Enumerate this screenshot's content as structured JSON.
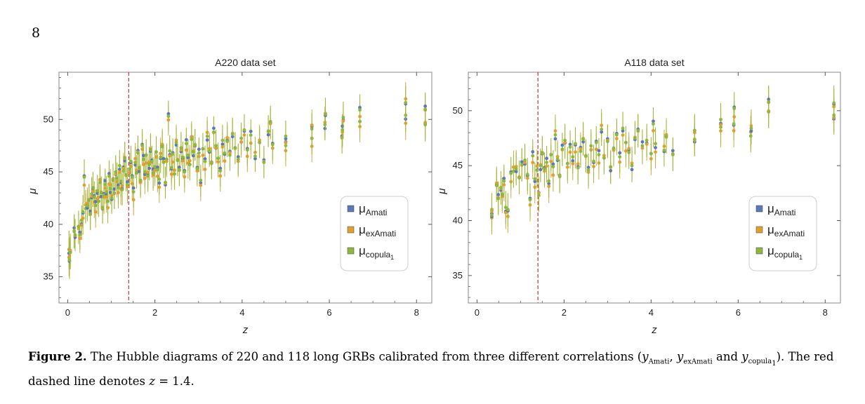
{
  "page_number": "8",
  "caption": {
    "label": "Figure 2.",
    "text_part1": " The Hubble diagrams of 220 and 118 long GRBs calibrated from three different correlations (",
    "y_symbol": "y",
    "sub_amati": "Amati",
    "sub_examati": "exAmati",
    "sub_copula": "copula",
    "sub_copula_index": "1",
    "sep1": ", ",
    "sep_and": " and ",
    "text_part2": "). The red dashed line denotes ",
    "z_symbol": "z",
    "text_part3": " = 1.4."
  },
  "colors": {
    "amati": "#5B78B8",
    "examati": "#E0A030",
    "copula": "#8DB840",
    "errorbar": "#9DB83A",
    "errorbar_orange": "#D9A33A",
    "redline": "#D0403A",
    "frame": "#888888"
  },
  "legend": {
    "mu": "μ",
    "amati": "Amati",
    "examati": "exAmati",
    "copula": "copula",
    "copula_index": "1"
  },
  "chart_data": [
    {
      "type": "scatter",
      "title": "A220 data set",
      "xlabel": "z",
      "ylabel": "μ",
      "xlim": [
        -0.2,
        8.35
      ],
      "ylim": [
        32.5,
        54.5
      ],
      "xticks": [
        0,
        2,
        4,
        6,
        8
      ],
      "yticks": [
        35,
        40,
        45,
        50
      ],
      "vline_z": 1.4,
      "legend_position": "lower-right",
      "n_points": 220,
      "series_names": [
        "μAmati",
        "μexAmati",
        "μcopula1"
      ],
      "points": [
        {
          "z": 0.03,
          "mu": 37.6,
          "err": 1.8
        },
        {
          "z": 0.04,
          "mu": 36.6,
          "err": 1.8
        },
        {
          "z": 0.06,
          "mu": 37.3,
          "err": 1.6
        },
        {
          "z": 0.15,
          "mu": 39.3,
          "err": 1.6
        },
        {
          "z": 0.17,
          "mu": 39.0,
          "err": 1.5
        },
        {
          "z": 0.25,
          "mu": 39.8,
          "err": 1.5
        },
        {
          "z": 0.28,
          "mu": 39.0,
          "err": 1.4
        },
        {
          "z": 0.32,
          "mu": 40.4,
          "err": 1.4
        },
        {
          "z": 0.35,
          "mu": 41.2,
          "err": 1.6
        },
        {
          "z": 0.38,
          "mu": 44.5,
          "err": 1.7
        },
        {
          "z": 0.41,
          "mu": 41.5,
          "err": 1.4
        },
        {
          "z": 0.45,
          "mu": 41.8,
          "err": 1.5
        },
        {
          "z": 0.49,
          "mu": 42.3,
          "err": 1.5
        },
        {
          "z": 0.52,
          "mu": 41.0,
          "err": 1.5
        },
        {
          "z": 0.55,
          "mu": 42.9,
          "err": 1.6
        },
        {
          "z": 0.58,
          "mu": 43.5,
          "err": 1.5
        },
        {
          "z": 0.61,
          "mu": 42.6,
          "err": 1.5
        },
        {
          "z": 0.64,
          "mu": 41.8,
          "err": 1.5
        },
        {
          "z": 0.68,
          "mu": 43.2,
          "err": 1.5
        },
        {
          "z": 0.71,
          "mu": 42.2,
          "err": 1.5
        },
        {
          "z": 0.74,
          "mu": 44.0,
          "err": 1.5
        },
        {
          "z": 0.77,
          "mu": 43.0,
          "err": 1.5
        },
        {
          "z": 0.8,
          "mu": 41.6,
          "err": 1.5
        },
        {
          "z": 0.83,
          "mu": 42.8,
          "err": 1.6
        },
        {
          "z": 0.86,
          "mu": 43.8,
          "err": 1.5
        },
        {
          "z": 0.89,
          "mu": 43.1,
          "err": 1.5
        },
        {
          "z": 0.92,
          "mu": 42.2,
          "err": 1.5
        },
        {
          "z": 0.95,
          "mu": 44.6,
          "err": 1.5
        },
        {
          "z": 0.98,
          "mu": 43.4,
          "err": 1.5
        },
        {
          "z": 1.01,
          "mu": 42.5,
          "err": 1.5
        },
        {
          "z": 1.04,
          "mu": 44.2,
          "err": 1.5
        },
        {
          "z": 1.07,
          "mu": 43.0,
          "err": 1.5
        },
        {
          "z": 1.1,
          "mu": 45.0,
          "err": 1.6
        },
        {
          "z": 1.13,
          "mu": 44.4,
          "err": 1.5
        },
        {
          "z": 1.16,
          "mu": 43.5,
          "err": 1.5
        },
        {
          "z": 1.19,
          "mu": 45.6,
          "err": 1.5
        },
        {
          "z": 1.22,
          "mu": 44.1,
          "err": 1.5
        },
        {
          "z": 1.25,
          "mu": 43.3,
          "err": 1.5
        },
        {
          "z": 1.28,
          "mu": 45.1,
          "err": 1.5
        },
        {
          "z": 1.31,
          "mu": 46.3,
          "err": 1.5
        },
        {
          "z": 1.34,
          "mu": 44.7,
          "err": 1.5
        },
        {
          "z": 1.37,
          "mu": 43.8,
          "err": 1.6
        },
        {
          "z": 1.42,
          "mu": 45.3,
          "err": 1.5
        },
        {
          "z": 1.45,
          "mu": 46.0,
          "err": 1.5
        },
        {
          "z": 1.48,
          "mu": 44.5,
          "err": 1.5
        },
        {
          "z": 1.51,
          "mu": 43.1,
          "err": 1.5
        },
        {
          "z": 1.55,
          "mu": 45.9,
          "err": 1.5
        },
        {
          "z": 1.58,
          "mu": 44.9,
          "err": 1.5
        },
        {
          "z": 1.61,
          "mu": 46.8,
          "err": 1.6
        },
        {
          "z": 1.64,
          "mu": 45.4,
          "err": 1.5
        },
        {
          "z": 1.67,
          "mu": 44.2,
          "err": 1.5
        },
        {
          "z": 1.71,
          "mu": 47.5,
          "err": 1.6
        },
        {
          "z": 1.74,
          "mu": 46.2,
          "err": 1.5
        },
        {
          "z": 1.77,
          "mu": 45.0,
          "err": 1.5
        },
        {
          "z": 1.8,
          "mu": 46.6,
          "err": 1.5
        },
        {
          "z": 1.84,
          "mu": 44.6,
          "err": 1.5
        },
        {
          "z": 1.87,
          "mu": 45.7,
          "err": 1.5
        },
        {
          "z": 1.9,
          "mu": 47.1,
          "err": 1.5
        },
        {
          "z": 1.93,
          "mu": 46.0,
          "err": 1.5
        },
        {
          "z": 1.96,
          "mu": 44.9,
          "err": 1.5
        },
        {
          "z": 2.0,
          "mu": 45.5,
          "err": 1.5
        },
        {
          "z": 2.03,
          "mu": 46.9,
          "err": 1.5
        },
        {
          "z": 2.06,
          "mu": 45.2,
          "err": 1.5
        },
        {
          "z": 2.1,
          "mu": 44.3,
          "err": 1.5
        },
        {
          "z": 2.13,
          "mu": 46.4,
          "err": 1.5
        },
        {
          "z": 2.17,
          "mu": 47.4,
          "err": 1.5
        },
        {
          "z": 2.2,
          "mu": 45.9,
          "err": 1.5
        },
        {
          "z": 2.24,
          "mu": 44.0,
          "err": 1.5
        },
        {
          "z": 2.27,
          "mu": 46.2,
          "err": 1.5
        },
        {
          "z": 2.31,
          "mu": 50.3,
          "err": 1.5
        },
        {
          "z": 2.34,
          "mu": 47.0,
          "err": 1.5
        },
        {
          "z": 2.38,
          "mu": 45.4,
          "err": 1.5
        },
        {
          "z": 2.41,
          "mu": 46.7,
          "err": 1.5
        },
        {
          "z": 2.45,
          "mu": 44.8,
          "err": 1.5
        },
        {
          "z": 2.49,
          "mu": 47.8,
          "err": 1.5
        },
        {
          "z": 2.52,
          "mu": 46.1,
          "err": 1.5
        },
        {
          "z": 2.56,
          "mu": 45.2,
          "err": 1.5
        },
        {
          "z": 2.6,
          "mu": 47.3,
          "err": 1.5
        },
        {
          "z": 2.64,
          "mu": 46.4,
          "err": 1.5
        },
        {
          "z": 2.68,
          "mu": 45.0,
          "err": 1.5
        },
        {
          "z": 2.72,
          "mu": 47.7,
          "err": 1.5
        },
        {
          "z": 2.76,
          "mu": 46.6,
          "err": 1.5
        },
        {
          "z": 2.8,
          "mu": 45.7,
          "err": 1.5
        },
        {
          "z": 2.84,
          "mu": 48.1,
          "err": 1.5
        },
        {
          "z": 2.88,
          "mu": 46.9,
          "err": 1.5
        },
        {
          "z": 2.92,
          "mu": 47.6,
          "err": 1.5
        },
        {
          "z": 2.97,
          "mu": 45.3,
          "err": 1.5
        },
        {
          "z": 3.01,
          "mu": 46.8,
          "err": 1.5
        },
        {
          "z": 3.05,
          "mu": 44.2,
          "err": 1.5
        },
        {
          "z": 3.1,
          "mu": 47.2,
          "err": 1.5
        },
        {
          "z": 3.15,
          "mu": 46.0,
          "err": 1.5
        },
        {
          "z": 3.2,
          "mu": 48.4,
          "err": 1.5
        },
        {
          "z": 3.25,
          "mu": 47.0,
          "err": 1.5
        },
        {
          "z": 3.3,
          "mu": 45.8,
          "err": 1.5
        },
        {
          "z": 3.35,
          "mu": 48.8,
          "err": 1.5
        },
        {
          "z": 3.4,
          "mu": 47.5,
          "err": 1.5
        },
        {
          "z": 3.45,
          "mu": 46.3,
          "err": 1.5
        },
        {
          "z": 3.5,
          "mu": 45.1,
          "err": 1.5
        },
        {
          "z": 3.55,
          "mu": 48.0,
          "err": 1.5
        },
        {
          "z": 3.6,
          "mu": 46.8,
          "err": 1.5
        },
        {
          "z": 3.66,
          "mu": 47.9,
          "err": 1.5
        },
        {
          "z": 3.72,
          "mu": 46.6,
          "err": 1.5
        },
        {
          "z": 3.78,
          "mu": 48.6,
          "err": 1.5
        },
        {
          "z": 3.84,
          "mu": 47.3,
          "err": 1.5
        },
        {
          "z": 3.91,
          "mu": 46.2,
          "err": 1.5
        },
        {
          "z": 3.98,
          "mu": 48.2,
          "err": 1.5
        },
        {
          "z": 4.05,
          "mu": 49.0,
          "err": 1.5
        },
        {
          "z": 4.12,
          "mu": 47.1,
          "err": 1.5
        },
        {
          "z": 4.2,
          "mu": 48.5,
          "err": 1.5
        },
        {
          "z": 4.3,
          "mu": 46.5,
          "err": 1.5
        },
        {
          "z": 4.4,
          "mu": 47.8,
          "err": 1.5
        },
        {
          "z": 4.5,
          "mu": 45.9,
          "err": 1.5
        },
        {
          "z": 4.6,
          "mu": 48.9,
          "err": 1.5
        },
        {
          "z": 4.65,
          "mu": 49.8,
          "err": 1.5
        },
        {
          "z": 4.7,
          "mu": 47.6,
          "err": 1.5
        },
        {
          "z": 5.0,
          "mu": 47.5,
          "err": 1.5
        },
        {
          "z": 5.0,
          "mu": 48.4,
          "err": 1.5
        },
        {
          "z": 5.6,
          "mu": 48.2,
          "err": 1.5
        },
        {
          "z": 5.6,
          "mu": 49.1,
          "err": 1.5
        },
        {
          "z": 5.9,
          "mu": 49.5,
          "err": 1.5
        },
        {
          "z": 5.91,
          "mu": 50.5,
          "err": 1.5
        },
        {
          "z": 6.29,
          "mu": 48.3,
          "err": 1.5
        },
        {
          "z": 6.3,
          "mu": 49.0,
          "err": 1.5
        },
        {
          "z": 6.32,
          "mu": 50.2,
          "err": 1.5
        },
        {
          "z": 6.7,
          "mu": 49.8,
          "err": 1.5
        },
        {
          "z": 6.7,
          "mu": 50.9,
          "err": 1.5
        },
        {
          "z": 7.75,
          "mu": 50.4,
          "err": 1.6
        },
        {
          "z": 7.75,
          "mu": 51.6,
          "err": 1.6
        },
        {
          "z": 8.2,
          "mu": 49.5,
          "err": 1.6
        },
        {
          "z": 8.2,
          "mu": 50.9,
          "err": 1.6
        }
      ]
    },
    {
      "type": "scatter",
      "title": "A118 data set",
      "xlabel": "z",
      "ylabel": "μ",
      "xlim": [
        -0.2,
        8.35
      ],
      "ylim": [
        32.5,
        53.5
      ],
      "xticks": [
        0,
        2,
        4,
        6,
        8
      ],
      "yticks": [
        35,
        40,
        45,
        50
      ],
      "vline_z": 1.4,
      "legend_position": "lower-right",
      "n_points": 118,
      "series_names": [
        "μAmati",
        "μexAmati",
        "μcopula1"
      ],
      "points": [
        {
          "z": 0.34,
          "mu": 41.0,
          "err": 1.5
        },
        {
          "z": 0.34,
          "mu": 40.5,
          "err": 1.5
        },
        {
          "z": 0.45,
          "mu": 43.2,
          "err": 1.5
        },
        {
          "z": 0.49,
          "mu": 42.0,
          "err": 1.5
        },
        {
          "z": 0.55,
          "mu": 43.0,
          "err": 1.5
        },
        {
          "z": 0.58,
          "mu": 42.4,
          "err": 1.5
        },
        {
          "z": 0.62,
          "mu": 43.6,
          "err": 1.5
        },
        {
          "z": 0.66,
          "mu": 41.2,
          "err": 1.5
        },
        {
          "z": 0.71,
          "mu": 41.0,
          "err": 1.5
        },
        {
          "z": 0.78,
          "mu": 44.3,
          "err": 1.5
        },
        {
          "z": 0.84,
          "mu": 44.5,
          "err": 1.5
        },
        {
          "z": 0.9,
          "mu": 44.7,
          "err": 1.5
        },
        {
          "z": 0.97,
          "mu": 43.9,
          "err": 1.5
        },
        {
          "z": 1.03,
          "mu": 45.1,
          "err": 1.5
        },
        {
          "z": 1.1,
          "mu": 45.5,
          "err": 1.5
        },
        {
          "z": 1.16,
          "mu": 44.2,
          "err": 1.5
        },
        {
          "z": 1.22,
          "mu": 41.9,
          "err": 1.5
        },
        {
          "z": 1.28,
          "mu": 45.9,
          "err": 1.5
        },
        {
          "z": 1.33,
          "mu": 43.8,
          "err": 1.5
        },
        {
          "z": 1.38,
          "mu": 44.6,
          "err": 1.5
        },
        {
          "z": 1.42,
          "mu": 42.3,
          "err": 1.5
        },
        {
          "z": 1.46,
          "mu": 45.0,
          "err": 1.5
        },
        {
          "z": 1.5,
          "mu": 46.2,
          "err": 1.5
        },
        {
          "z": 1.55,
          "mu": 44.7,
          "err": 1.5
        },
        {
          "z": 1.6,
          "mu": 45.3,
          "err": 1.5
        },
        {
          "z": 1.65,
          "mu": 43.6,
          "err": 1.5
        },
        {
          "z": 1.7,
          "mu": 46.0,
          "err": 1.5
        },
        {
          "z": 1.75,
          "mu": 44.9,
          "err": 1.5
        },
        {
          "z": 1.8,
          "mu": 47.8,
          "err": 1.5
        },
        {
          "z": 1.85,
          "mu": 45.6,
          "err": 1.5
        },
        {
          "z": 1.9,
          "mu": 44.0,
          "err": 1.5
        },
        {
          "z": 1.96,
          "mu": 46.5,
          "err": 1.5
        },
        {
          "z": 2.02,
          "mu": 47.3,
          "err": 1.5
        },
        {
          "z": 2.08,
          "mu": 45.2,
          "err": 1.5
        },
        {
          "z": 2.14,
          "mu": 46.7,
          "err": 1.5
        },
        {
          "z": 2.2,
          "mu": 45.8,
          "err": 1.5
        },
        {
          "z": 2.26,
          "mu": 47.0,
          "err": 1.5
        },
        {
          "z": 2.32,
          "mu": 44.8,
          "err": 1.5
        },
        {
          "z": 2.38,
          "mu": 46.3,
          "err": 1.5
        },
        {
          "z": 2.44,
          "mu": 47.4,
          "err": 1.5
        },
        {
          "z": 2.5,
          "mu": 45.9,
          "err": 1.5
        },
        {
          "z": 2.56,
          "mu": 44.6,
          "err": 1.5
        },
        {
          "z": 2.62,
          "mu": 46.8,
          "err": 1.5
        },
        {
          "z": 2.68,
          "mu": 45.4,
          "err": 1.5
        },
        {
          "z": 2.74,
          "mu": 47.1,
          "err": 1.5
        },
        {
          "z": 2.8,
          "mu": 46.0,
          "err": 1.5
        },
        {
          "z": 2.86,
          "mu": 48.3,
          "err": 1.5
        },
        {
          "z": 2.92,
          "mu": 45.7,
          "err": 1.5
        },
        {
          "z": 3.0,
          "mu": 47.2,
          "err": 1.5
        },
        {
          "z": 3.07,
          "mu": 44.9,
          "err": 1.5
        },
        {
          "z": 3.14,
          "mu": 46.6,
          "err": 1.5
        },
        {
          "z": 3.21,
          "mu": 47.8,
          "err": 1.5
        },
        {
          "z": 3.28,
          "mu": 45.8,
          "err": 1.5
        },
        {
          "z": 3.35,
          "mu": 48.4,
          "err": 1.5
        },
        {
          "z": 3.42,
          "mu": 47.1,
          "err": 1.5
        },
        {
          "z": 3.49,
          "mu": 46.2,
          "err": 1.5
        },
        {
          "z": 3.56,
          "mu": 45.0,
          "err": 1.5
        },
        {
          "z": 3.63,
          "mu": 47.5,
          "err": 1.5
        },
        {
          "z": 3.7,
          "mu": 48.2,
          "err": 1.5
        },
        {
          "z": 3.8,
          "mu": 46.8,
          "err": 1.5
        },
        {
          "z": 3.9,
          "mu": 47.3,
          "err": 1.5
        },
        {
          "z": 4.0,
          "mu": 46.1,
          "err": 1.5
        },
        {
          "z": 4.05,
          "mu": 48.8,
          "err": 1.5
        },
        {
          "z": 4.1,
          "mu": 47.0,
          "err": 1.5
        },
        {
          "z": 4.3,
          "mu": 46.4,
          "err": 1.5
        },
        {
          "z": 4.35,
          "mu": 47.6,
          "err": 1.5
        },
        {
          "z": 4.5,
          "mu": 46.0,
          "err": 1.5
        },
        {
          "z": 5.0,
          "mu": 47.4,
          "err": 1.5
        },
        {
          "z": 5.0,
          "mu": 48.2,
          "err": 1.5
        },
        {
          "z": 5.6,
          "mu": 48.5,
          "err": 1.5
        },
        {
          "z": 5.6,
          "mu": 49.2,
          "err": 1.5
        },
        {
          "z": 5.9,
          "mu": 48.8,
          "err": 1.5
        },
        {
          "z": 5.91,
          "mu": 50.2,
          "err": 1.5
        },
        {
          "z": 6.29,
          "mu": 47.7,
          "err": 1.5
        },
        {
          "z": 6.3,
          "mu": 48.4,
          "err": 1.5
        },
        {
          "z": 6.7,
          "mu": 49.9,
          "err": 1.5
        },
        {
          "z": 6.7,
          "mu": 50.8,
          "err": 1.5
        },
        {
          "z": 8.2,
          "mu": 49.6,
          "err": 1.6
        },
        {
          "z": 8.2,
          "mu": 50.7,
          "err": 1.6
        }
      ]
    }
  ]
}
